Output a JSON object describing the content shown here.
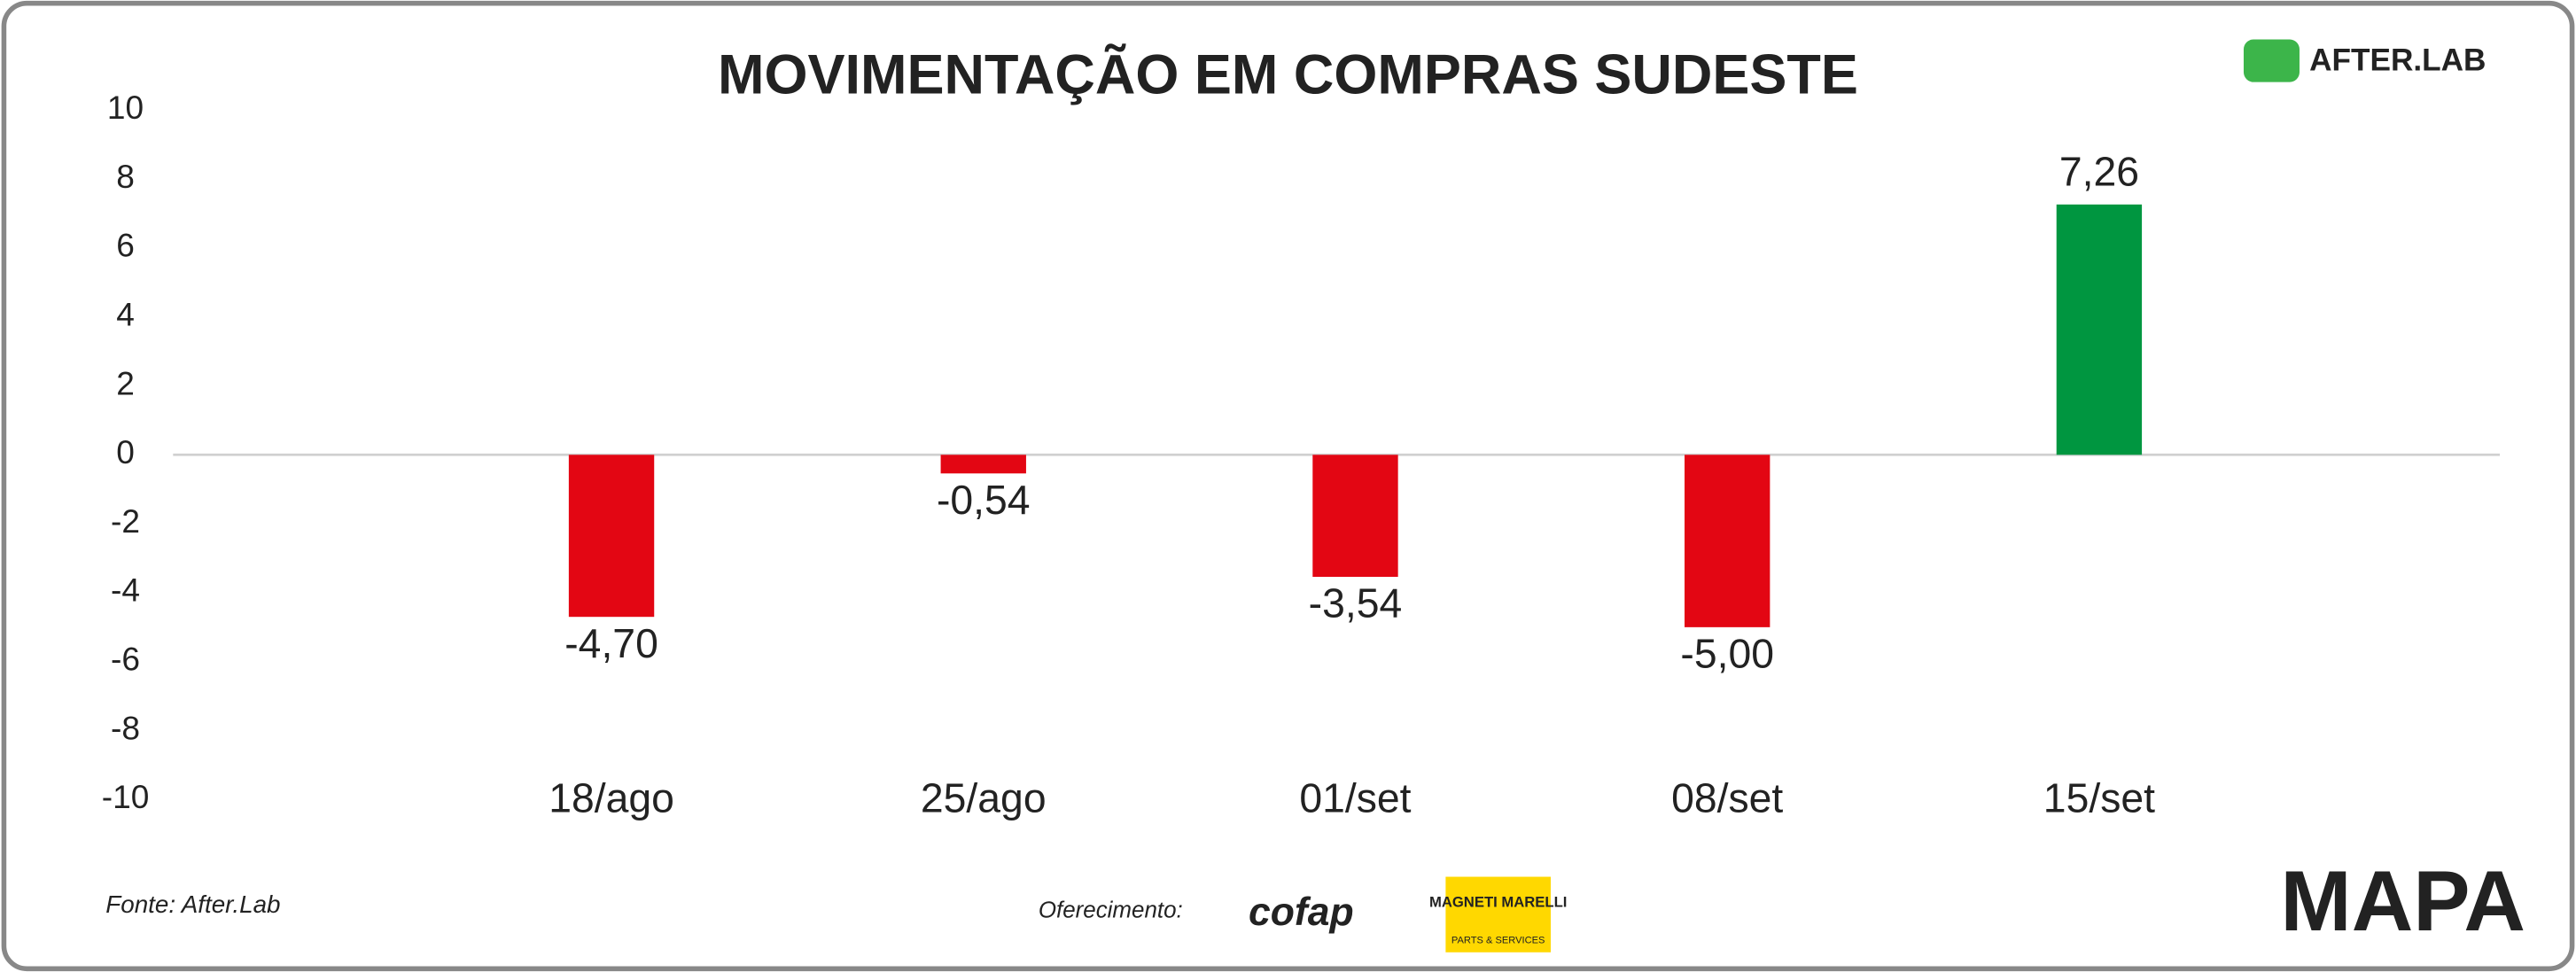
{
  "chart_data": {
    "type": "bar",
    "title": "MOVIMENTAÇÃO EM COMPRAS SUDESTE",
    "categories": [
      "18/ago",
      "25/ago",
      "01/set",
      "08/set",
      "15/set"
    ],
    "values": [
      -4.7,
      -0.54,
      -3.54,
      -5.0,
      7.26
    ],
    "value_labels": [
      "-4,70",
      "-0,54",
      "-3,54",
      "-5,00",
      "7,26"
    ],
    "colors": [
      "#e30613",
      "#e30613",
      "#e30613",
      "#e30613",
      "#009640"
    ],
    "ylim": [
      -10,
      10
    ],
    "yticks": [
      -10,
      -8,
      -6,
      -4,
      -2,
      0,
      2,
      4,
      6,
      8,
      10
    ],
    "source": "Fonte: After.Lab",
    "sponsor_label": "Oferecimento:",
    "logos": {
      "afterlab": "AFTER.LAB",
      "cofap": "cofap",
      "magneti": "MAGNETI MARELLI",
      "magneti_sub": "PARTS & SERVICES",
      "mapa": "MAPA"
    }
  }
}
